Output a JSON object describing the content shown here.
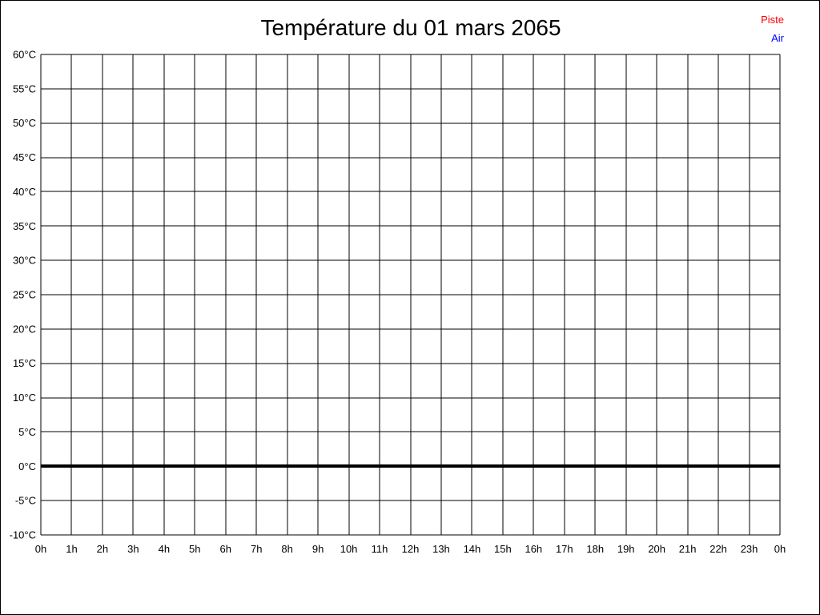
{
  "window": {
    "background": "#ffffff",
    "frame_border_color": "#000000"
  },
  "chart_data": {
    "type": "line",
    "title": "Température du 01 mars 2065",
    "xlabel": "",
    "ylabel": "",
    "x_tick_labels": [
      "0h",
      "1h",
      "2h",
      "3h",
      "4h",
      "5h",
      "6h",
      "7h",
      "8h",
      "9h",
      "10h",
      "11h",
      "12h",
      "13h",
      "14h",
      "15h",
      "16h",
      "17h",
      "18h",
      "19h",
      "20h",
      "21h",
      "22h",
      "23h",
      "0h"
    ],
    "y_tick_labels": [
      "60°C",
      "55°C",
      "50°C",
      "45°C",
      "40°C",
      "35°C",
      "30°C",
      "25°C",
      "20°C",
      "15°C",
      "10°C",
      "5°C",
      "0°C",
      "-5°C",
      "-10°C"
    ],
    "ylim": [
      -10,
      60
    ],
    "y_tick_step": 5,
    "grid": true,
    "grid_color": "#000000",
    "zero_line_value": 0,
    "zero_line_color": "#000000",
    "legend_position": "top-right",
    "series": [
      {
        "name": "Piste",
        "color": "#ff0000",
        "values": []
      },
      {
        "name": "Air",
        "color": "#0000ff",
        "values": []
      }
    ]
  }
}
